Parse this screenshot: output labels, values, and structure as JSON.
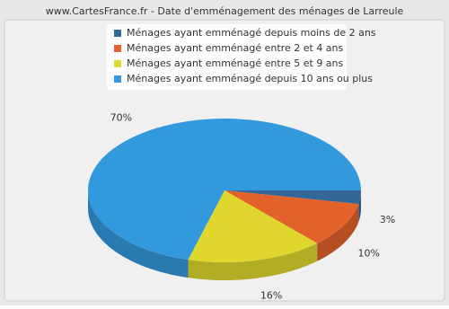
{
  "chart_data": {
    "type": "pie",
    "title": "www.CartesFrance.fr - Date d'emménagement des ménages de Larreule",
    "categories": [
      "Ménages ayant emménagé depuis moins de 2 ans",
      "Ménages ayant emménagé entre 2 et 4 ans",
      "Ménages ayant emménagé entre 5 et 9 ans",
      "Ménages ayant emménagé depuis 10 ans ou plus"
    ],
    "values": [
      3,
      10,
      16,
      70
    ],
    "value_labels": [
      "3%",
      "10%",
      "16%",
      "70%"
    ],
    "colors": [
      "#336699",
      "#e2622a",
      "#e0d72e",
      "#3399dd"
    ]
  }
}
